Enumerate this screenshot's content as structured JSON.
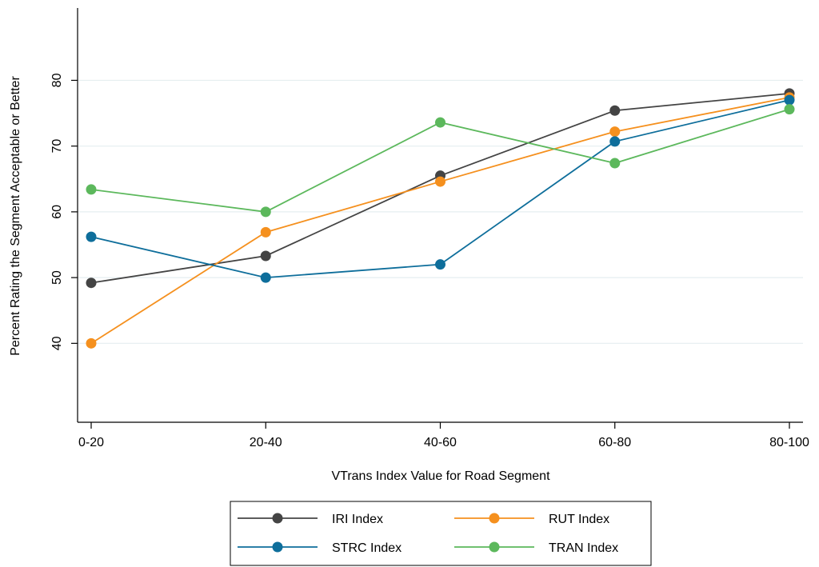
{
  "chart_data": {
    "type": "line",
    "categories": [
      "0-20",
      "20-40",
      "40-60",
      "60-80",
      "80-100"
    ],
    "xlabel": "VTrans Index Value for Road Segment",
    "ylabel": "Percent Rating the Segment Acceptable or Better",
    "ylim": [
      28,
      91
    ],
    "yticks": [
      40,
      50,
      60,
      70,
      80
    ],
    "grid": true,
    "legend_position": "bottom",
    "series": [
      {
        "name": "IRI Index",
        "color": "#444444",
        "values": [
          49.2,
          53.3,
          65.5,
          75.4,
          78.0
        ]
      },
      {
        "name": "RUT Index",
        "color": "#f5901e",
        "values": [
          40.0,
          56.9,
          64.6,
          72.2,
          77.4
        ]
      },
      {
        "name": "STRC Index",
        "color": "#0e6e9b",
        "values": [
          56.2,
          50.0,
          52.0,
          70.7,
          77.0
        ]
      },
      {
        "name": "TRAN Index",
        "color": "#5cb85c",
        "values": [
          63.4,
          60.0,
          73.6,
          67.4,
          75.6
        ]
      }
    ]
  }
}
